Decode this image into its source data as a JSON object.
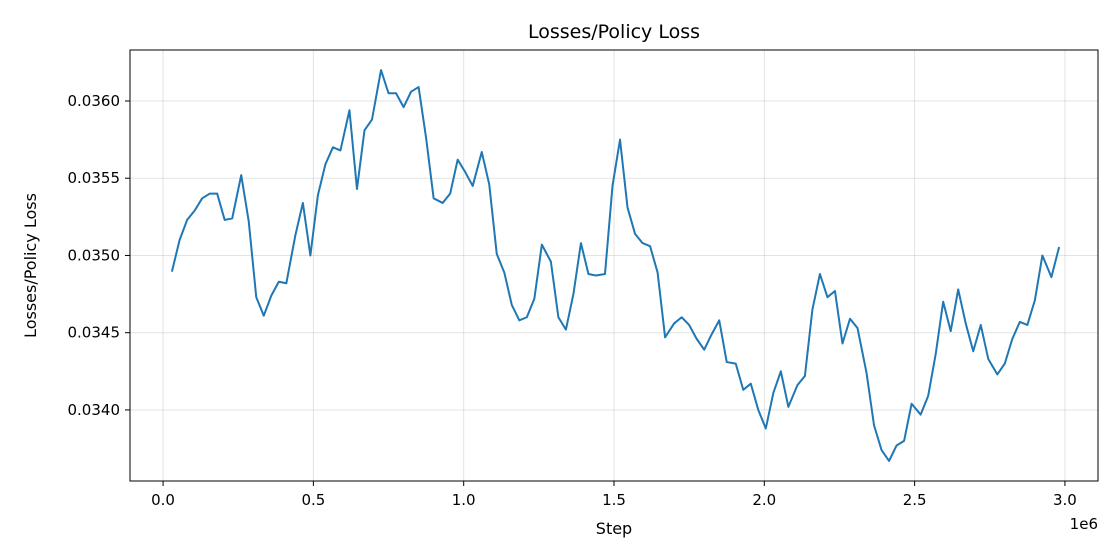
{
  "chart_data": {
    "type": "line",
    "title": "Losses/Policy Loss",
    "xlabel": "Step",
    "ylabel": "Losses/Policy Loss",
    "x_offset_label": "1e6",
    "xlim": [
      -0.11,
      3.11
    ],
    "ylim": [
      0.03354,
      0.03633
    ],
    "xticks": [
      0.0,
      0.5,
      1.0,
      1.5,
      2.0,
      2.5,
      3.0
    ],
    "xtick_labels": [
      "0.0",
      "0.5",
      "1.0",
      "1.5",
      "2.0",
      "2.5",
      "3.0"
    ],
    "yticks": [
      0.034,
      0.0345,
      0.035,
      0.0355,
      0.036
    ],
    "ytick_labels": [
      "0.0340",
      "0.0345",
      "0.0350",
      "0.0355",
      "0.0360"
    ],
    "grid": true,
    "color": "#1f77b4",
    "series": [
      {
        "x": [
          0.03,
          0.055,
          0.08,
          0.105,
          0.13,
          0.155,
          0.18,
          0.205,
          0.23,
          0.26,
          0.285,
          0.31,
          0.335,
          0.36,
          0.385,
          0.41,
          0.44,
          0.465,
          0.49,
          0.515,
          0.54,
          0.565,
          0.59,
          0.62,
          0.645,
          0.67,
          0.695,
          0.725,
          0.75,
          0.775,
          0.8,
          0.825,
          0.85,
          0.875,
          0.9,
          0.93,
          0.955,
          0.98,
          1.005,
          1.03,
          1.06,
          1.085,
          1.11,
          1.135,
          1.16,
          1.185,
          1.21,
          1.235,
          1.26,
          1.29,
          1.315,
          1.34,
          1.365,
          1.39,
          1.415,
          1.44,
          1.47,
          1.495,
          1.52,
          1.545,
          1.57,
          1.595,
          1.62,
          1.645,
          1.67,
          1.7,
          1.725,
          1.75,
          1.775,
          1.8,
          1.825,
          1.85,
          1.875,
          1.905,
          1.93,
          1.955,
          1.98,
          2.005,
          2.03,
          2.055,
          2.08,
          2.11,
          2.135,
          2.16,
          2.185,
          2.21,
          2.235,
          2.26,
          2.285,
          2.31,
          2.34,
          2.365,
          2.39,
          2.415,
          2.44,
          2.465,
          2.49,
          2.52,
          2.545,
          2.57,
          2.595,
          2.62,
          2.645,
          2.67,
          2.695,
          2.72,
          2.745,
          2.775,
          2.8,
          2.825,
          2.85,
          2.875,
          2.9,
          2.925,
          2.955,
          2.98
        ],
        "y": [
          0.0349,
          0.0351,
          0.03523,
          0.03529,
          0.03537,
          0.0354,
          0.0354,
          0.03523,
          0.03524,
          0.03552,
          0.03522,
          0.03473,
          0.03461,
          0.03474,
          0.03483,
          0.03482,
          0.03513,
          0.03534,
          0.035,
          0.03539,
          0.03559,
          0.0357,
          0.03568,
          0.03594,
          0.03543,
          0.03581,
          0.03588,
          0.0362,
          0.03605,
          0.03605,
          0.03596,
          0.03606,
          0.03609,
          0.03576,
          0.03537,
          0.03534,
          0.0354,
          0.03562,
          0.03554,
          0.03545,
          0.03567,
          0.03546,
          0.03501,
          0.03489,
          0.03468,
          0.03458,
          0.0346,
          0.03472,
          0.03507,
          0.03496,
          0.0346,
          0.03452,
          0.03475,
          0.03508,
          0.03488,
          0.03487,
          0.03488,
          0.03545,
          0.03575,
          0.03531,
          0.03514,
          0.03508,
          0.03506,
          0.03489,
          0.03447,
          0.03456,
          0.0346,
          0.03455,
          0.03446,
          0.03439,
          0.03449,
          0.03458,
          0.03431,
          0.0343,
          0.03413,
          0.03417,
          0.034,
          0.03388,
          0.03411,
          0.03425,
          0.03402,
          0.03416,
          0.03422,
          0.03465,
          0.03488,
          0.03473,
          0.03477,
          0.03443,
          0.03459,
          0.03453,
          0.03424,
          0.0339,
          0.03374,
          0.03367,
          0.03377,
          0.0338,
          0.03404,
          0.03397,
          0.03409,
          0.03436,
          0.0347,
          0.03451,
          0.03478,
          0.03456,
          0.03438,
          0.03455,
          0.03433,
          0.03423,
          0.0343,
          0.03446,
          0.03457,
          0.03455,
          0.03471,
          0.035,
          0.03486,
          0.03505
        ]
      }
    ]
  }
}
